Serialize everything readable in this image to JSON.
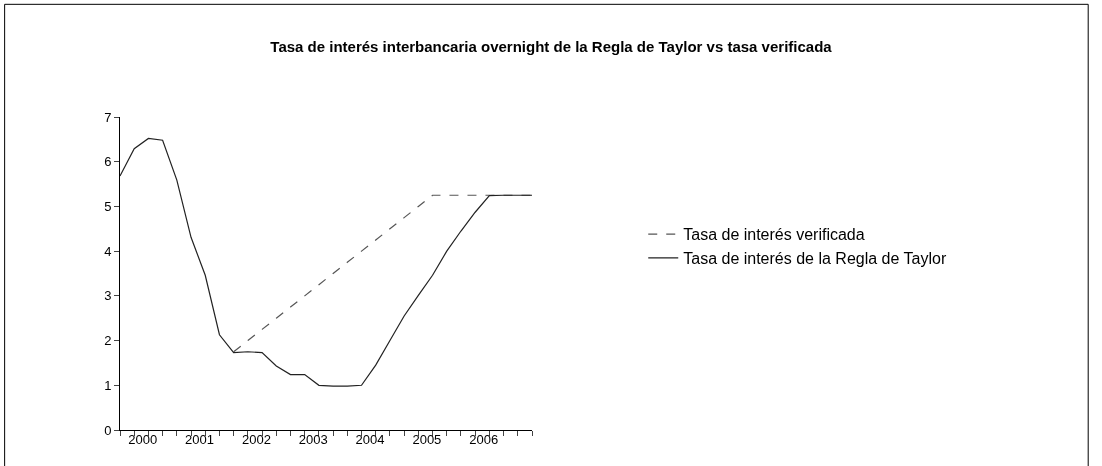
{
  "chart_data": {
    "type": "line",
    "title": "Tasa de interés interbancaria overnight de la Regla de Taylor vs tasa verificada",
    "x": [
      2000.0,
      2000.25,
      2000.5,
      2000.75,
      2001.0,
      2001.25,
      2001.5,
      2001.75,
      2002.0,
      2002.25,
      2002.5,
      2002.75,
      2003.0,
      2003.25,
      2003.5,
      2003.75,
      2004.0,
      2004.25,
      2004.5,
      2004.75,
      2005.0,
      2005.25,
      2005.5,
      2005.75,
      2006.0,
      2006.25,
      2006.5,
      2006.75,
      2007.0,
      2007.25
    ],
    "series": [
      {
        "name": "Tasa de interés verificada",
        "color": "#555555",
        "line_style": "dashed",
        "values": [
          null,
          null,
          null,
          null,
          null,
          null,
          null,
          null,
          1.75,
          2.0,
          2.25,
          2.5,
          2.75,
          3.0,
          3.25,
          3.5,
          3.75,
          4.0,
          4.25,
          4.5,
          4.75,
          5.0,
          5.25,
          5.25,
          5.25,
          5.25,
          5.25,
          5.25,
          5.25,
          5.25
        ]
      },
      {
        "name": "Tasa de interés de la Regla de Taylor",
        "color": "#222222",
        "line_style": "solid",
        "values": [
          5.68,
          6.29,
          6.52,
          6.48,
          5.59,
          4.31,
          3.46,
          2.13,
          1.73,
          1.75,
          1.73,
          1.43,
          1.24,
          1.24,
          1.0,
          0.98,
          0.98,
          1.0,
          1.45,
          2.0,
          2.55,
          3.01,
          3.46,
          4.0,
          4.45,
          4.87,
          5.24,
          5.25,
          5.25,
          5.25
        ]
      }
    ],
    "xlim": [
      2000.0,
      2007.25
    ],
    "ylim": [
      0,
      7
    ],
    "yticks": [
      0,
      1,
      2,
      3,
      4,
      5,
      6,
      7
    ],
    "xticks": [
      {
        "value": 2000.0,
        "label": null
      },
      {
        "value": 2000.25,
        "label": null
      },
      {
        "value": 2000.5,
        "label": null
      },
      {
        "value": 2000.75,
        "label": null
      },
      {
        "value": 2001.0,
        "label": null
      },
      {
        "value": 2001.25,
        "label": null
      },
      {
        "value": 2001.5,
        "label": null
      },
      {
        "value": 2001.75,
        "label": null
      },
      {
        "value": 2002.0,
        "label": null
      },
      {
        "value": 2002.25,
        "label": null
      },
      {
        "value": 2002.5,
        "label": null
      },
      {
        "value": 2002.75,
        "label": null
      },
      {
        "value": 2003.0,
        "label": null
      },
      {
        "value": 2003.25,
        "label": null
      },
      {
        "value": 2003.5,
        "label": null
      },
      {
        "value": 2003.75,
        "label": null
      },
      {
        "value": 2004.0,
        "label": null
      },
      {
        "value": 2004.25,
        "label": null
      },
      {
        "value": 2004.5,
        "label": null
      },
      {
        "value": 2004.75,
        "label": null
      },
      {
        "value": 2005.0,
        "label": null
      },
      {
        "value": 2005.25,
        "label": null
      },
      {
        "value": 2005.5,
        "label": null
      },
      {
        "value": 2005.75,
        "label": null
      },
      {
        "value": 2006.0,
        "label": null
      },
      {
        "value": 2006.25,
        "label": null
      },
      {
        "value": 2006.5,
        "label": null
      },
      {
        "value": 2006.75,
        "label": null
      },
      {
        "value": 2007.0,
        "label": null
      },
      {
        "value": 2007.25,
        "label": null
      },
      {
        "value": 2000.4,
        "label": "2000"
      },
      {
        "value": 2001.4,
        "label": "2001"
      },
      {
        "value": 2002.4,
        "label": "2002"
      },
      {
        "value": 2003.4,
        "label": "2003"
      },
      {
        "value": 2004.4,
        "label": "2004"
      },
      {
        "value": 2005.4,
        "label": "2005"
      },
      {
        "value": 2006.4,
        "label": "2006"
      }
    ],
    "legend": "right",
    "marker": "none"
  }
}
